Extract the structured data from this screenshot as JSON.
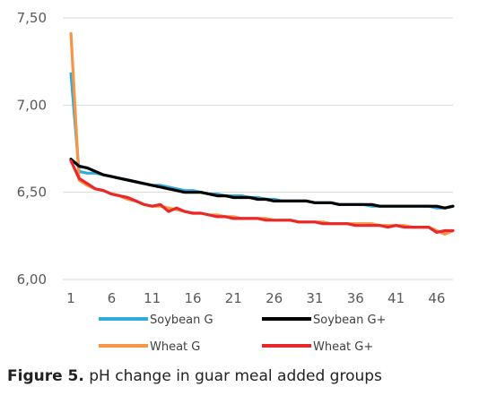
{
  "caption": {
    "label": "Figure 5.",
    "text": " pH change in guar meal added groups"
  },
  "chart_data": {
    "type": "line",
    "title": "",
    "xlabel": "",
    "ylabel": "",
    "xlim": [
      0,
      48
    ],
    "ylim": [
      6.0,
      7.5
    ],
    "grid": "horizontal",
    "legend_position": "bottom",
    "x_ticks": [
      "1",
      "6",
      "11",
      "16",
      "21",
      "26",
      "31",
      "36",
      "41",
      "46"
    ],
    "y_ticks": [
      "6,00",
      "6,50",
      "7,00",
      "7,50"
    ],
    "x": [
      1,
      2,
      3,
      4,
      5,
      6,
      7,
      8,
      9,
      10,
      11,
      12,
      13,
      14,
      15,
      16,
      17,
      18,
      19,
      20,
      21,
      22,
      23,
      24,
      25,
      26,
      27,
      28,
      29,
      30,
      31,
      32,
      33,
      34,
      35,
      36,
      37,
      38,
      39,
      40,
      41,
      42,
      43,
      44,
      45,
      46,
      47,
      48
    ],
    "series": [
      {
        "name": "Soybean G",
        "color": "#2eaadc",
        "values": [
          7.18,
          6.62,
          6.61,
          6.61,
          6.6,
          6.59,
          6.58,
          6.57,
          6.56,
          6.55,
          6.54,
          6.54,
          6.53,
          6.52,
          6.51,
          6.51,
          6.5,
          6.49,
          6.49,
          6.48,
          6.48,
          6.48,
          6.47,
          6.47,
          6.46,
          6.46,
          6.45,
          6.45,
          6.45,
          6.45,
          6.44,
          6.44,
          6.44,
          6.43,
          6.43,
          6.43,
          6.43,
          6.42,
          6.42,
          6.42,
          6.42,
          6.42,
          6.42,
          6.42,
          6.42,
          6.41,
          6.41,
          6.42
        ]
      },
      {
        "name": "Soybean G+",
        "color": "#000000",
        "values": [
          6.69,
          6.65,
          6.64,
          6.62,
          6.6,
          6.59,
          6.58,
          6.57,
          6.56,
          6.55,
          6.54,
          6.53,
          6.52,
          6.51,
          6.5,
          6.5,
          6.5,
          6.49,
          6.48,
          6.48,
          6.47,
          6.47,
          6.47,
          6.46,
          6.46,
          6.45,
          6.45,
          6.45,
          6.45,
          6.45,
          6.44,
          6.44,
          6.44,
          6.43,
          6.43,
          6.43,
          6.43,
          6.43,
          6.42,
          6.42,
          6.42,
          6.42,
          6.42,
          6.42,
          6.42,
          6.42,
          6.41,
          6.42
        ]
      },
      {
        "name": "Wheat G",
        "color": "#f79646",
        "values": [
          7.41,
          6.57,
          6.54,
          6.52,
          6.51,
          6.49,
          6.48,
          6.46,
          6.45,
          6.43,
          6.42,
          6.42,
          6.41,
          6.4,
          6.39,
          6.38,
          6.38,
          6.37,
          6.37,
          6.36,
          6.36,
          6.35,
          6.35,
          6.35,
          6.35,
          6.34,
          6.34,
          6.34,
          6.33,
          6.33,
          6.33,
          6.33,
          6.32,
          6.32,
          6.32,
          6.32,
          6.32,
          6.32,
          6.31,
          6.31,
          6.31,
          6.31,
          6.3,
          6.3,
          6.3,
          6.28,
          6.26,
          6.28
        ]
      },
      {
        "name": "Wheat G+",
        "color": "#e8282b",
        "values": [
          6.68,
          6.58,
          6.55,
          6.52,
          6.51,
          6.49,
          6.48,
          6.47,
          6.45,
          6.43,
          6.42,
          6.43,
          6.39,
          6.41,
          6.39,
          6.38,
          6.38,
          6.37,
          6.36,
          6.36,
          6.35,
          6.35,
          6.35,
          6.35,
          6.34,
          6.34,
          6.34,
          6.34,
          6.33,
          6.33,
          6.33,
          6.32,
          6.32,
          6.32,
          6.32,
          6.31,
          6.31,
          6.31,
          6.31,
          6.3,
          6.31,
          6.3,
          6.3,
          6.3,
          6.3,
          6.27,
          6.28,
          6.28
        ]
      }
    ]
  }
}
